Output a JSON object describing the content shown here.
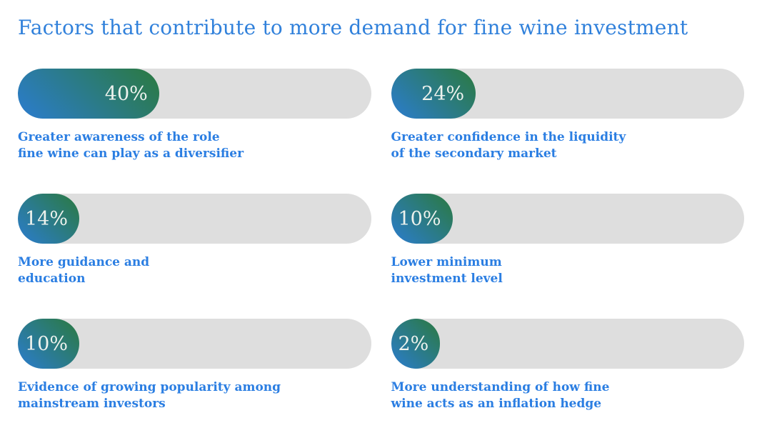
{
  "title": "Factors that contribute to more demand for fine wine investment",
  "colors": {
    "title_text": "#3181db",
    "label_text": "#2b7ee2",
    "bar_track": "#dedede",
    "gradient_start": "#2b7ccf",
    "gradient_end": "#2b7a3f",
    "percent_text": "#edf2ed",
    "page_background": "#ffffff"
  },
  "chart_data": {
    "type": "bar",
    "orientation": "horizontal",
    "title": "Factors that contribute to more demand for fine wine investment",
    "categories": [
      "Greater awareness of the role fine wine can play as a diversifier",
      "Greater confidence in the liquidity of the secondary market",
      "More guidance and education",
      "Lower minimum investment level",
      "Evidence of growing popularity among mainstream investors",
      "More understanding of how fine wine acts as an inflation hedge"
    ],
    "values": [
      40,
      24,
      14,
      10,
      10,
      2
    ],
    "unit": "%",
    "xlim": [
      0,
      100
    ],
    "grid": false,
    "legend": "none",
    "layout": "two-column grid, three rows, value label inside gradient fill"
  },
  "bars": [
    {
      "value": 40,
      "value_label": "40%",
      "label_line1": "Greater awareness of the role",
      "label_line2": "fine wine can play as a diversifier"
    },
    {
      "value": 24,
      "value_label": "24%",
      "label_line1": "Greater confidence in the liquidity",
      "label_line2": "of the secondary market"
    },
    {
      "value": 14,
      "value_label": "14%",
      "label_line1": "More guidance and",
      "label_line2": "education"
    },
    {
      "value": 10,
      "value_label": "10%",
      "label_line1": "Lower minimum",
      "label_line2": "investment level"
    },
    {
      "value": 10,
      "value_label": "10%",
      "label_line1": "Evidence of growing popularity among",
      "label_line2": "mainstream investors"
    },
    {
      "value": 2,
      "value_label": "2%",
      "label_line1": "More understanding of how fine",
      "label_line2": "wine acts as an inflation hedge"
    }
  ]
}
